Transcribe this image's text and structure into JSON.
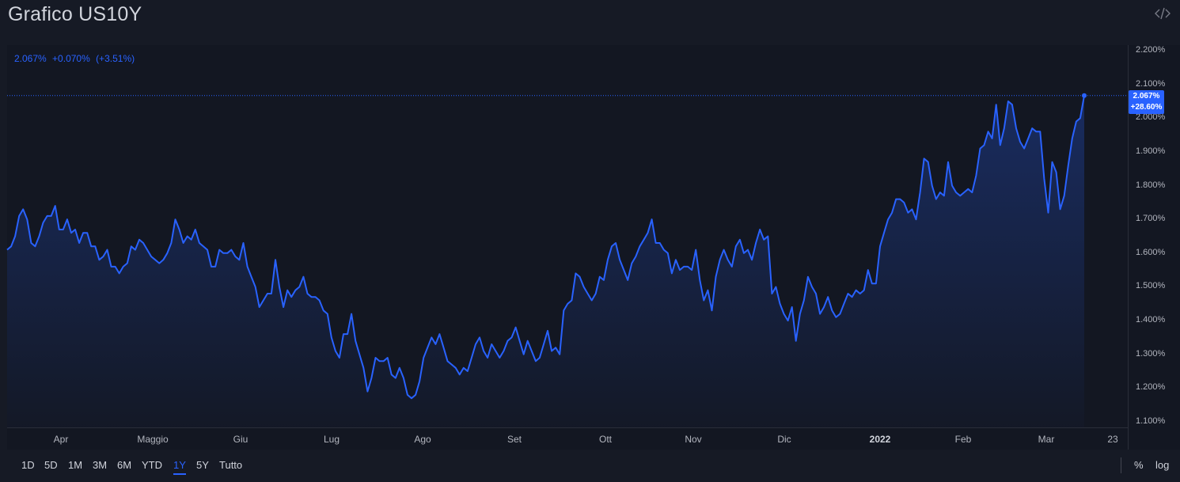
{
  "header": {
    "title": "Grafico US10Y",
    "embed_icon": "code-embed-icon"
  },
  "legend": {
    "value": "2.067%",
    "change": "+0.070%",
    "change_pct": "(+3.51%)"
  },
  "last_price": {
    "value": "2.067%",
    "change": "+28.60%"
  },
  "range_buttons": [
    {
      "label": "1D"
    },
    {
      "label": "5D"
    },
    {
      "label": "1M"
    },
    {
      "label": "3M"
    },
    {
      "label": "6M"
    },
    {
      "label": "YTD"
    },
    {
      "label": "1Y",
      "active": true
    },
    {
      "label": "5Y"
    },
    {
      "label": "Tutto"
    }
  ],
  "scale_buttons": [
    {
      "label": "%"
    },
    {
      "label": "log"
    }
  ],
  "colors": {
    "line": "#2962ff",
    "background": "#131722",
    "panel": "#161a25"
  },
  "chart_data": {
    "type": "area",
    "ylim": [
      1.1,
      2.2
    ],
    "y_ticks": [
      "2.200%",
      "2.100%",
      "2.000%",
      "1.900%",
      "1.800%",
      "1.700%",
      "1.600%",
      "1.500%",
      "1.400%",
      "1.300%",
      "1.200%",
      "1.100%"
    ],
    "x_ticks": [
      {
        "label": "Apr",
        "bold": false
      },
      {
        "label": "Maggio",
        "bold": false
      },
      {
        "label": "Giu",
        "bold": false
      },
      {
        "label": "Lug",
        "bold": false
      },
      {
        "label": "Ago",
        "bold": false
      },
      {
        "label": "Set",
        "bold": false
      },
      {
        "label": "Ott",
        "bold": false
      },
      {
        "label": "Nov",
        "bold": false
      },
      {
        "label": "Dic",
        "bold": false
      },
      {
        "label": "2022",
        "bold": true
      },
      {
        "label": "Feb",
        "bold": false
      },
      {
        "label": "Mar",
        "bold": false
      },
      {
        "label": "23",
        "bold": false
      }
    ],
    "values": [
      1.61,
      1.62,
      1.65,
      1.71,
      1.73,
      1.7,
      1.63,
      1.62,
      1.65,
      1.69,
      1.71,
      1.71,
      1.74,
      1.67,
      1.67,
      1.7,
      1.66,
      1.67,
      1.63,
      1.66,
      1.66,
      1.62,
      1.62,
      1.58,
      1.59,
      1.61,
      1.56,
      1.56,
      1.54,
      1.56,
      1.57,
      1.62,
      1.61,
      1.64,
      1.63,
      1.61,
      1.59,
      1.58,
      1.57,
      1.58,
      1.6,
      1.63,
      1.7,
      1.67,
      1.63,
      1.65,
      1.64,
      1.67,
      1.63,
      1.62,
      1.61,
      1.56,
      1.56,
      1.61,
      1.6,
      1.6,
      1.61,
      1.59,
      1.58,
      1.63,
      1.56,
      1.53,
      1.5,
      1.44,
      1.46,
      1.48,
      1.48,
      1.58,
      1.5,
      1.44,
      1.49,
      1.47,
      1.49,
      1.5,
      1.53,
      1.48,
      1.47,
      1.47,
      1.46,
      1.43,
      1.42,
      1.35,
      1.31,
      1.29,
      1.36,
      1.36,
      1.42,
      1.34,
      1.3,
      1.26,
      1.19,
      1.23,
      1.29,
      1.28,
      1.28,
      1.29,
      1.24,
      1.23,
      1.26,
      1.23,
      1.18,
      1.17,
      1.18,
      1.22,
      1.29,
      1.32,
      1.35,
      1.33,
      1.36,
      1.32,
      1.28,
      1.27,
      1.26,
      1.24,
      1.26,
      1.25,
      1.29,
      1.33,
      1.35,
      1.31,
      1.29,
      1.33,
      1.31,
      1.29,
      1.31,
      1.34,
      1.35,
      1.38,
      1.34,
      1.3,
      1.34,
      1.31,
      1.28,
      1.29,
      1.33,
      1.37,
      1.31,
      1.32,
      1.3,
      1.43,
      1.45,
      1.46,
      1.54,
      1.53,
      1.5,
      1.48,
      1.46,
      1.48,
      1.53,
      1.52,
      1.58,
      1.62,
      1.63,
      1.58,
      1.55,
      1.52,
      1.57,
      1.59,
      1.62,
      1.64,
      1.66,
      1.7,
      1.63,
      1.63,
      1.61,
      1.6,
      1.54,
      1.58,
      1.55,
      1.56,
      1.56,
      1.55,
      1.61,
      1.52,
      1.46,
      1.49,
      1.43,
      1.53,
      1.58,
      1.61,
      1.58,
      1.56,
      1.62,
      1.64,
      1.6,
      1.61,
      1.58,
      1.63,
      1.67,
      1.64,
      1.65,
      1.48,
      1.5,
      1.45,
      1.42,
      1.4,
      1.44,
      1.34,
      1.42,
      1.46,
      1.53,
      1.5,
      1.48,
      1.42,
      1.44,
      1.47,
      1.43,
      1.41,
      1.42,
      1.45,
      1.48,
      1.47,
      1.49,
      1.48,
      1.49,
      1.55,
      1.51,
      1.51,
      1.62,
      1.66,
      1.7,
      1.72,
      1.76,
      1.76,
      1.75,
      1.72,
      1.73,
      1.7,
      1.78,
      1.88,
      1.87,
      1.8,
      1.76,
      1.78,
      1.77,
      1.87,
      1.8,
      1.78,
      1.77,
      1.78,
      1.79,
      1.78,
      1.83,
      1.91,
      1.92,
      1.96,
      1.94,
      2.04,
      1.92,
      1.97,
      2.05,
      2.04,
      1.97,
      1.93,
      1.91,
      1.94,
      1.97,
      1.96,
      1.96,
      1.82,
      1.72,
      1.87,
      1.84,
      1.73,
      1.77,
      1.86,
      1.94,
      1.99,
      2.0,
      2.067
    ]
  }
}
